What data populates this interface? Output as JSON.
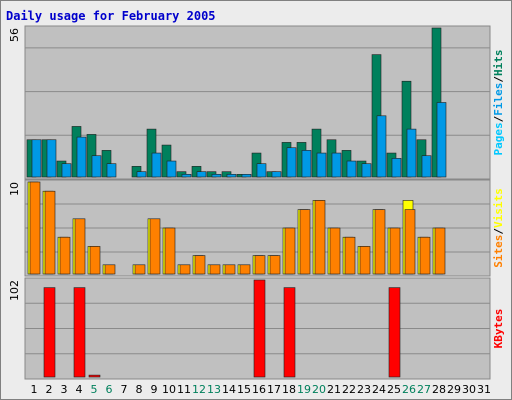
{
  "colors": {
    "background": "#ececec",
    "panel": "#c0c0c0",
    "grid": "#8a8a8a",
    "title": "#0000cc",
    "hits": "#00805c",
    "files": "#0099e6",
    "pages": "#00c8ff",
    "visits": "#ffff00",
    "sites": "#ff8000",
    "kbytes": "#ff0000",
    "weekend": "#00805c",
    "weekday": "#000000"
  },
  "chart_data": {
    "type": "bar",
    "title": "Daily usage for February 2005",
    "days": [
      "1",
      "2",
      "3",
      "4",
      "5",
      "6",
      "7",
      "8",
      "9",
      "10",
      "11",
      "12",
      "13",
      "14",
      "15",
      "16",
      "17",
      "18",
      "19",
      "20",
      "21",
      "22",
      "23",
      "24",
      "25",
      "26",
      "27",
      "28",
      "29",
      "30",
      "31"
    ],
    "weekend_days": [
      5,
      6,
      12,
      13,
      19,
      20,
      26,
      27
    ],
    "top": {
      "max_label": "56",
      "ymax": 56,
      "legend": [
        "Pages",
        "/",
        "Files",
        "/",
        "Hits"
      ],
      "series": [
        {
          "name": "Hits",
          "values": [
            14,
            14,
            6,
            19,
            16,
            10,
            0,
            4,
            18,
            12,
            2,
            4,
            2,
            2,
            1,
            9,
            2,
            13,
            13,
            18,
            14,
            10,
            6,
            46,
            9,
            36,
            14,
            56,
            0,
            0,
            0
          ]
        },
        {
          "name": "Files",
          "values": [
            14,
            14,
            5,
            15,
            8,
            5,
            0,
            2,
            9,
            6,
            1,
            2,
            1,
            1,
            1,
            5,
            2,
            11,
            10,
            9,
            9,
            6,
            5,
            23,
            7,
            18,
            8,
            28,
            0,
            0,
            0
          ]
        }
      ]
    },
    "middle": {
      "max_label": "10",
      "ymax": 10,
      "legend": [
        "Sites",
        "/",
        "Visits"
      ],
      "series": [
        {
          "name": "Visits",
          "values": [
            10,
            9,
            4,
            6,
            3,
            1,
            0,
            1,
            6,
            5,
            1,
            2,
            1,
            1,
            1,
            2,
            2,
            5,
            7,
            8,
            5,
            4,
            3,
            7,
            5,
            8,
            4,
            5,
            0,
            0,
            0
          ]
        },
        {
          "name": "Sites",
          "values": [
            10,
            9,
            4,
            6,
            3,
            1,
            0,
            1,
            6,
            5,
            1,
            2,
            1,
            1,
            1,
            2,
            2,
            5,
            7,
            8,
            5,
            4,
            3,
            7,
            5,
            7,
            4,
            5,
            0,
            0,
            0
          ]
        }
      ]
    },
    "bottom": {
      "max_label": "102",
      "ymax": 102,
      "legend": [
        "KBytes"
      ],
      "series": [
        {
          "name": "KBytes",
          "values": [
            0,
            94,
            0,
            94,
            2,
            0,
            0,
            0,
            0,
            0,
            0,
            0,
            0,
            0,
            0,
            102,
            0,
            94,
            0,
            0,
            0,
            0,
            0,
            0,
            94,
            0,
            0,
            0,
            0,
            0,
            0
          ]
        }
      ]
    }
  }
}
